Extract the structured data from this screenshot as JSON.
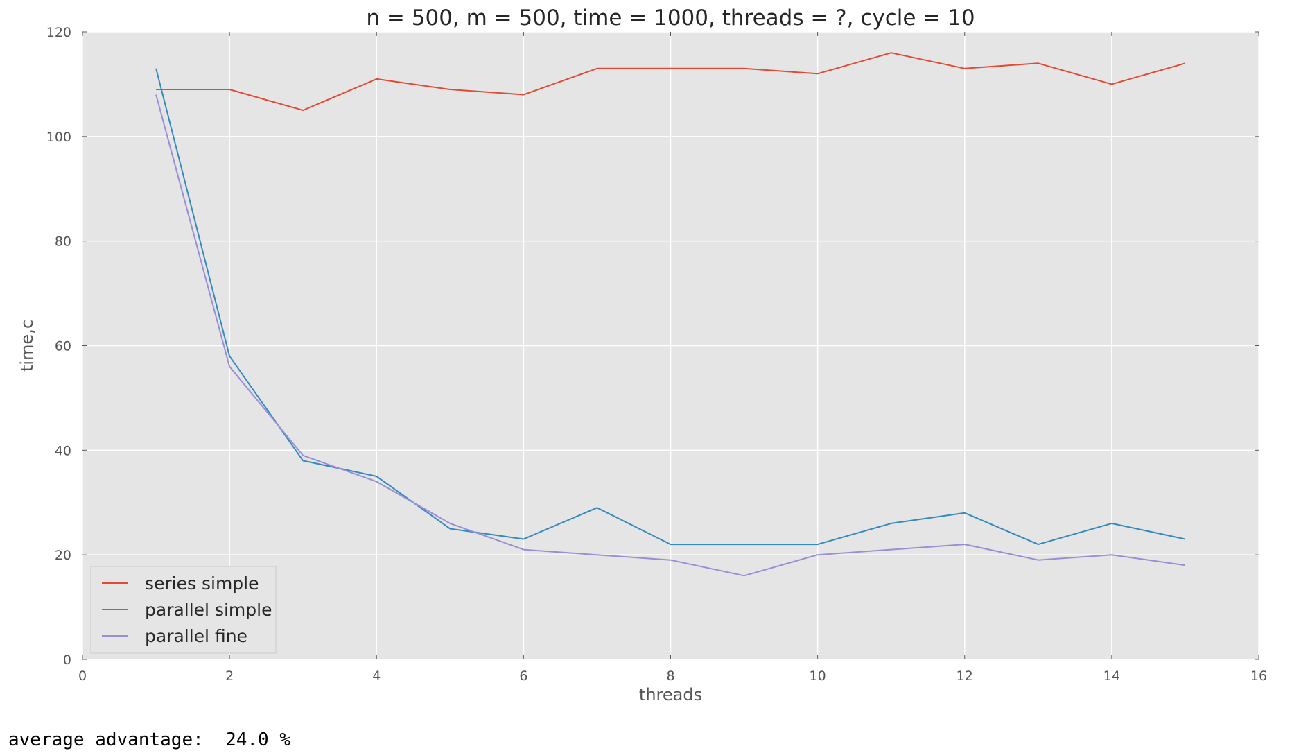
{
  "chart_data": {
    "type": "line",
    "title": "n = 500, m = 500, time = 1000, threads = ?, cycle = 10",
    "xlabel": "threads",
    "ylabel": "time,c",
    "xlim": [
      0,
      16
    ],
    "ylim": [
      0,
      120
    ],
    "xticks": [
      0,
      2,
      4,
      6,
      8,
      10,
      12,
      14,
      16
    ],
    "yticks": [
      0,
      20,
      40,
      60,
      80,
      100,
      120
    ],
    "grid": true,
    "legend_position": "lower left",
    "x": [
      1,
      2,
      3,
      4,
      5,
      6,
      7,
      8,
      9,
      10,
      11,
      12,
      13,
      14,
      15
    ],
    "series": [
      {
        "name": "series simple",
        "color": "#e24a33",
        "values": [
          109,
          109,
          105,
          111,
          109,
          108,
          113,
          113,
          113,
          112,
          116,
          113,
          114,
          110,
          114
        ]
      },
      {
        "name": "parallel simple",
        "color": "#348abd",
        "values": [
          113,
          58,
          38,
          35,
          25,
          23,
          29,
          22,
          22,
          22,
          26,
          28,
          22,
          26,
          23
        ]
      },
      {
        "name": "parallel fine",
        "color": "#988ed5",
        "values": [
          108,
          56,
          39,
          34,
          26,
          21,
          20,
          19,
          16,
          20,
          21,
          22,
          19,
          20,
          18
        ]
      }
    ]
  },
  "output": {
    "text": "average advantage:  24.0 %"
  }
}
